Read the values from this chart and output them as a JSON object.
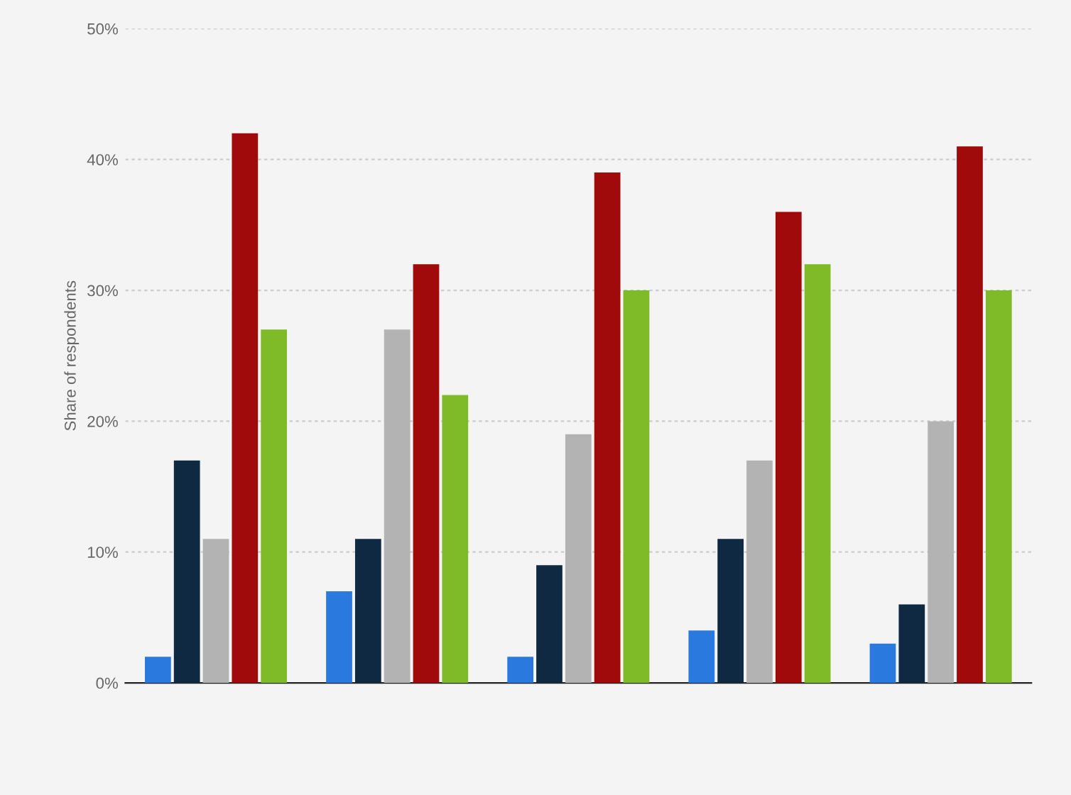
{
  "chart_data": {
    "type": "bar",
    "ylabel": "Share of respondents",
    "categories": [
      null,
      null,
      null,
      null,
      null
    ],
    "series": [
      {
        "color": "#2a79de",
        "values": [
          2,
          7,
          2,
          4,
          3
        ]
      },
      {
        "color": "#0f2942",
        "values": [
          17,
          11,
          9,
          11,
          6
        ]
      },
      {
        "color": "#b3b3b3",
        "values": [
          11,
          27,
          19,
          17,
          20
        ]
      },
      {
        "color": "#a10a0b",
        "values": [
          42,
          32,
          39,
          36,
          41
        ]
      },
      {
        "color": "#7fba28",
        "values": [
          27,
          22,
          30,
          32,
          30
        ]
      }
    ],
    "ylim": [
      0,
      50
    ],
    "yticks": [
      {
        "value": 0,
        "label": "0%"
      },
      {
        "value": 10,
        "label": "10%"
      },
      {
        "value": 20,
        "label": "20%"
      },
      {
        "value": 30,
        "label": "30%"
      },
      {
        "value": 40,
        "label": "40%"
      },
      {
        "value": 50,
        "label": "50%"
      }
    ],
    "grid": "y",
    "legend": false
  }
}
